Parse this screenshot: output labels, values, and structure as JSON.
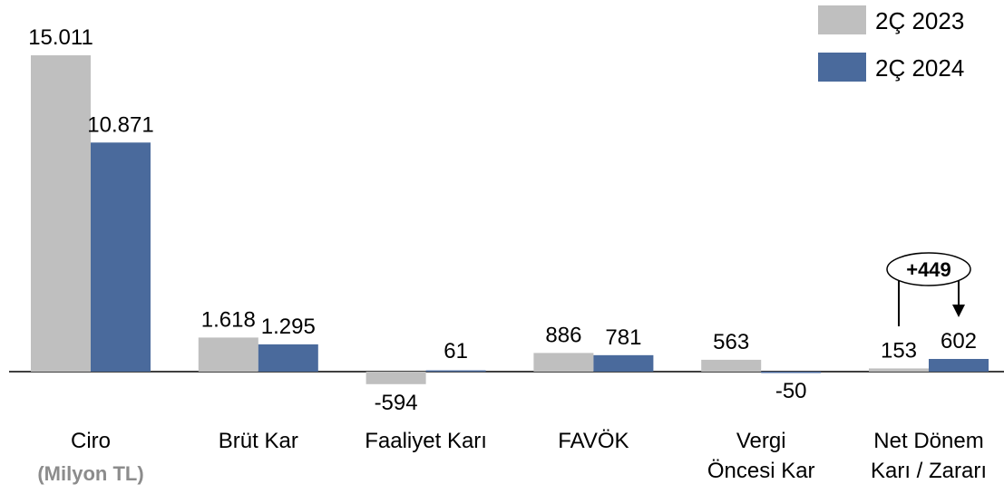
{
  "chart_data": {
    "type": "bar",
    "categories": [
      "Ciro",
      "Brüt Kar",
      "Faaliyet Karı",
      "FAVÖK",
      "Vergi\nÖncesi Kar",
      "Net Dönem\nKarı / Zararı"
    ],
    "subtitle": "(Milyon TL)",
    "series": [
      {
        "name": "2Ç 2023",
        "color": "#bfbfbf",
        "values": [
          15011,
          1618,
          -594,
          886,
          563,
          153
        ],
        "value_labels": [
          "15.011",
          "1.618",
          "-594",
          "886",
          "563",
          "153"
        ]
      },
      {
        "name": "2Ç 2024",
        "color": "#4a6a9c",
        "values": [
          10871,
          1295,
          61,
          781,
          -50,
          602
        ],
        "value_labels": [
          "10.871",
          "1.295",
          "61",
          "781",
          "-50",
          "602"
        ]
      }
    ],
    "annotation": "+449",
    "legend": "top-right"
  }
}
